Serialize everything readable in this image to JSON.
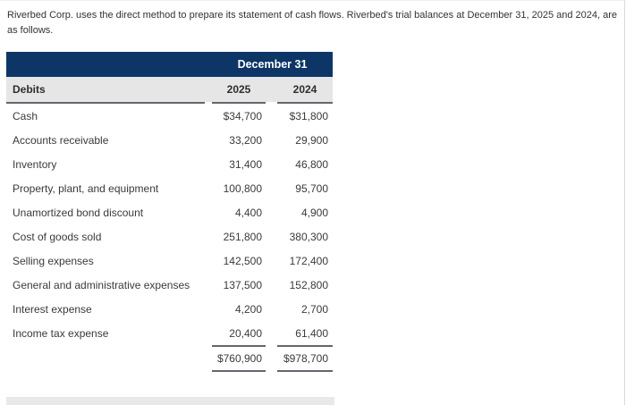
{
  "intro": "Riverbed Corp. uses the direct method to prepare its statement of cash flows. Riverbed's trial balances at December 31, 2025 and 2024, are as follows.",
  "table": {
    "banner": "December 31",
    "columns": {
      "label": "Debits",
      "col1": "2025",
      "col2": "2024"
    },
    "rows": [
      {
        "label": "Cash",
        "y2025": "$34,700",
        "y2024": "$31,800"
      },
      {
        "label": "Accounts receivable",
        "y2025": "33,200",
        "y2024": "29,900"
      },
      {
        "label": "Inventory",
        "y2025": "31,400",
        "y2024": "46,800"
      },
      {
        "label": "Property, plant, and equipment",
        "y2025": "100,800",
        "y2024": "95,700"
      },
      {
        "label": "Unamortized bond discount",
        "y2025": "4,400",
        "y2024": "4,900"
      },
      {
        "label": "Cost of goods sold",
        "y2025": "251,800",
        "y2024": "380,300"
      },
      {
        "label": "Selling expenses",
        "y2025": "142,500",
        "y2024": "172,400"
      },
      {
        "label": "General and administrative expenses",
        "y2025": "137,500",
        "y2024": "152,800"
      },
      {
        "label": "Interest expense",
        "y2025": "4,200",
        "y2024": "2,700"
      },
      {
        "label": "Income tax expense",
        "y2025": "20,400",
        "y2024": "61,400"
      }
    ],
    "totals": {
      "y2025": "$760,900",
      "y2024": "$978,700"
    }
  },
  "colors": {
    "header_navy": "#0d3667",
    "header_gray": "#e6e6e6",
    "rule_gray": "#63676d"
  }
}
